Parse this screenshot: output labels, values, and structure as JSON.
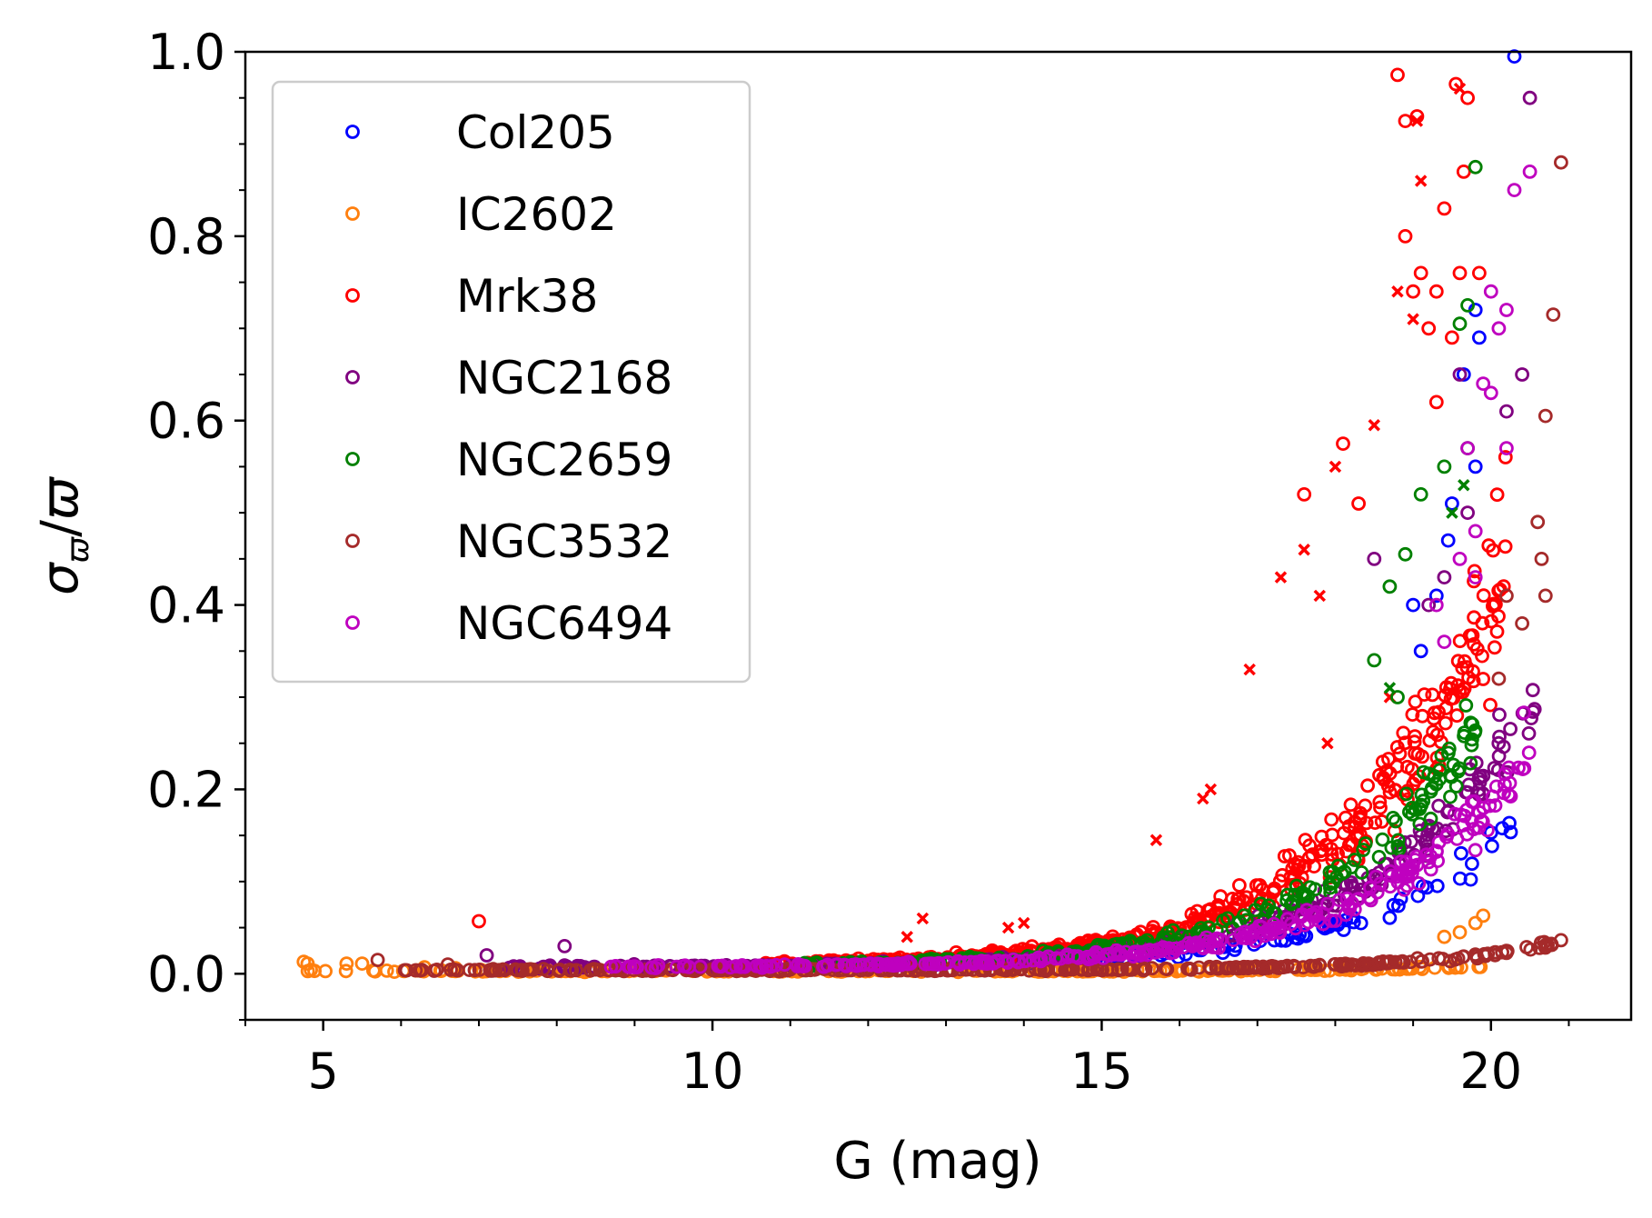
{
  "chart_data": {
    "type": "scatter",
    "title": "",
    "xlabel": "G (mag)",
    "ylabel_parts": {
      "main": "σ",
      "sub": "ϖ",
      "slash": "/",
      "denom": "ϖ"
    },
    "xlim": [
      4.0,
      21.8
    ],
    "ylim": [
      -0.05,
      1.0
    ],
    "xticks": [
      5,
      10,
      15,
      20
    ],
    "xtick_labels": [
      "5",
      "10",
      "15",
      "20"
    ],
    "yticks": [
      0.0,
      0.2,
      0.4,
      0.6,
      0.8,
      1.0
    ],
    "ytick_labels": [
      "0.0",
      "0.2",
      "0.4",
      "0.6",
      "0.8",
      "1.0"
    ],
    "grid": false,
    "legend_position": "upper-left",
    "marker": "open-circle",
    "secondary_marker": "x (rejected members)",
    "series": [
      {
        "name": "Col205",
        "color": "#0000ff",
        "g_range": [
          12.0,
          20.3
        ],
        "curve": {
          "floor": 0.006,
          "amp": 0.00072,
          "k": 0.52
        },
        "count": 90,
        "scatter": 0.35,
        "outliers": [
          [
            20.3,
            0.995
          ],
          [
            19.8,
            0.72
          ],
          [
            19.85,
            0.69
          ],
          [
            19.65,
            0.65
          ],
          [
            19.8,
            0.55
          ],
          [
            19.5,
            0.51
          ],
          [
            19.45,
            0.47
          ],
          [
            19.0,
            0.4
          ],
          [
            19.3,
            0.41
          ],
          [
            19.1,
            0.35
          ]
        ]
      },
      {
        "name": "IC2602",
        "color": "#ff7f0e",
        "g_range": [
          4.7,
          19.9
        ],
        "curve": {
          "floor": 0.003,
          "amp": 1e-05,
          "k": 0.62
        },
        "count": 220,
        "scatter": 0.25,
        "outliers": [
          [
            4.75,
            0.013
          ],
          [
            4.8,
            0.011
          ],
          [
            5.3,
            0.011
          ],
          [
            5.5,
            0.011
          ],
          [
            6.3,
            0.007
          ],
          [
            6.7,
            0.006
          ],
          [
            19.8,
            0.055
          ],
          [
            19.9,
            0.063
          ],
          [
            19.6,
            0.045
          ],
          [
            19.4,
            0.04
          ]
        ]
      },
      {
        "name": "Mrk38",
        "color": "#ff0000",
        "g_range": [
          10.5,
          20.2
        ],
        "curve": {
          "floor": 0.008,
          "amp": 0.0016,
          "k": 0.55
        },
        "count": 420,
        "scatter": 0.5,
        "outliers": [
          [
            7.0,
            0.057
          ],
          [
            18.8,
            0.975
          ],
          [
            19.55,
            0.965
          ],
          [
            19.7,
            0.95
          ],
          [
            19.05,
            0.93
          ],
          [
            18.9,
            0.925
          ],
          [
            19.65,
            0.87
          ],
          [
            19.4,
            0.83
          ],
          [
            18.9,
            0.8
          ],
          [
            19.85,
            0.76
          ],
          [
            19.1,
            0.76
          ],
          [
            19.6,
            0.76
          ],
          [
            19.3,
            0.74
          ],
          [
            19.0,
            0.74
          ],
          [
            19.2,
            0.7
          ],
          [
            19.5,
            0.69
          ],
          [
            18.1,
            0.575
          ],
          [
            19.3,
            0.62
          ],
          [
            17.6,
            0.52
          ],
          [
            18.3,
            0.51
          ]
        ],
        "crosses": [
          [
            19.6,
            0.96
          ],
          [
            19.05,
            0.925
          ],
          [
            19.1,
            0.86
          ],
          [
            18.8,
            0.74
          ],
          [
            19.0,
            0.71
          ],
          [
            18.5,
            0.595
          ],
          [
            18.0,
            0.55
          ],
          [
            17.6,
            0.46
          ],
          [
            17.3,
            0.43
          ],
          [
            17.8,
            0.41
          ],
          [
            16.9,
            0.33
          ],
          [
            16.4,
            0.2
          ],
          [
            16.3,
            0.19
          ],
          [
            15.7,
            0.145
          ],
          [
            14.0,
            0.055
          ],
          [
            13.8,
            0.05
          ],
          [
            12.7,
            0.06
          ],
          [
            12.5,
            0.04
          ],
          [
            18.7,
            0.3
          ],
          [
            17.9,
            0.25
          ]
        ]
      },
      {
        "name": "NGC2168",
        "color": "#800080",
        "g_range": [
          7.1,
          20.6
        ],
        "curve": {
          "floor": 0.007,
          "amp": 0.0011,
          "k": 0.53
        },
        "count": 300,
        "scatter": 0.35,
        "outliers": [
          [
            7.1,
            0.02
          ],
          [
            8.1,
            0.03
          ],
          [
            20.5,
            0.95
          ],
          [
            20.4,
            0.65
          ],
          [
            20.2,
            0.61
          ],
          [
            19.6,
            0.65
          ],
          [
            19.7,
            0.5
          ],
          [
            19.4,
            0.43
          ],
          [
            19.2,
            0.4
          ],
          [
            18.5,
            0.45
          ]
        ]
      },
      {
        "name": "NGC2659",
        "color": "#008000",
        "g_range": [
          11.0,
          19.8
        ],
        "curve": {
          "floor": 0.008,
          "amp": 0.0013,
          "k": 0.54
        },
        "count": 200,
        "scatter": 0.35,
        "outliers": [
          [
            19.8,
            0.875
          ],
          [
            19.7,
            0.725
          ],
          [
            19.6,
            0.705
          ],
          [
            19.7,
            0.57
          ],
          [
            19.4,
            0.55
          ],
          [
            19.1,
            0.52
          ],
          [
            18.9,
            0.455
          ],
          [
            18.7,
            0.42
          ],
          [
            18.5,
            0.34
          ],
          [
            18.8,
            0.3
          ]
        ],
        "crosses": [
          [
            19.65,
            0.53
          ],
          [
            19.5,
            0.5
          ],
          [
            18.7,
            0.31
          ]
        ]
      },
      {
        "name": "NGC3532",
        "color": "#a52a2a",
        "g_range": [
          5.7,
          20.9
        ],
        "curve": {
          "floor": 0.004,
          "amp": 4e-05,
          "k": 0.61
        },
        "count": 360,
        "scatter": 0.3,
        "outliers": [
          [
            5.7,
            0.015
          ],
          [
            6.6,
            0.01
          ],
          [
            20.9,
            0.88
          ],
          [
            20.8,
            0.715
          ],
          [
            20.7,
            0.605
          ],
          [
            20.6,
            0.49
          ],
          [
            20.65,
            0.45
          ],
          [
            20.7,
            0.41
          ],
          [
            20.4,
            0.38
          ],
          [
            20.2,
            0.41
          ],
          [
            20.1,
            0.32
          ]
        ]
      },
      {
        "name": "NGC6494",
        "color": "#bf00bf",
        "g_range": [
          8.6,
          20.5
        ],
        "curve": {
          "floor": 0.007,
          "amp": 0.0009,
          "k": 0.53
        },
        "count": 330,
        "scatter": 0.35,
        "outliers": [
          [
            20.5,
            0.87
          ],
          [
            20.3,
            0.85
          ],
          [
            20.0,
            0.74
          ],
          [
            20.1,
            0.7
          ],
          [
            20.2,
            0.72
          ],
          [
            19.9,
            0.64
          ],
          [
            20.0,
            0.63
          ],
          [
            20.2,
            0.57
          ],
          [
            19.7,
            0.57
          ],
          [
            19.8,
            0.48
          ],
          [
            19.8,
            0.43
          ],
          [
            19.6,
            0.45
          ],
          [
            19.4,
            0.36
          ],
          [
            19.3,
            0.4
          ]
        ]
      }
    ]
  }
}
